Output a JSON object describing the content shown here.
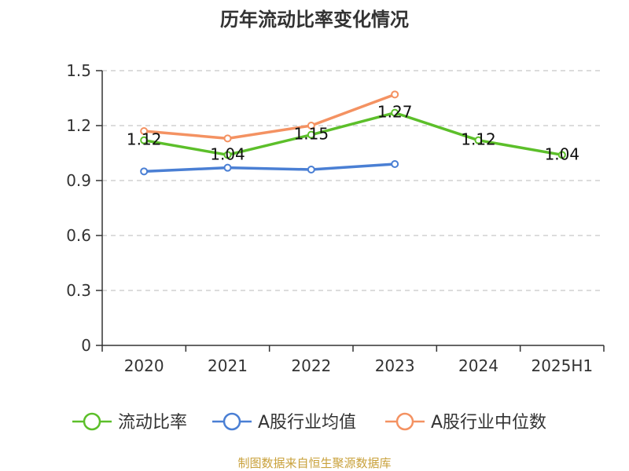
{
  "chart_data": {
    "type": "line",
    "title": "历年流动比率变化情况",
    "categories": [
      "2020",
      "2021",
      "2022",
      "2023",
      "2024",
      "2025H1"
    ],
    "yticks": [
      "0",
      "0.3",
      "0.6",
      "0.9",
      "1.2",
      "1.5"
    ],
    "ylim": [
      0,
      1.5
    ],
    "grid": true,
    "legend_position": "bottom",
    "series": [
      {
        "name": "流动比率",
        "color": "#5cbf2a",
        "values": [
          1.12,
          1.04,
          1.15,
          1.27,
          1.12,
          1.04
        ],
        "labels": [
          "1.12",
          "1.04",
          "1.15",
          "1.27",
          "1.12",
          "1.04"
        ]
      },
      {
        "name": "A股行业均值",
        "color": "#4a7fd4",
        "values": [
          0.95,
          0.97,
          0.96,
          0.99,
          null,
          null
        ]
      },
      {
        "name": "A股行业中位数",
        "color": "#f49262",
        "values": [
          1.17,
          1.13,
          1.2,
          1.37,
          null,
          null
        ]
      }
    ],
    "source": "制图数据来自恒生聚源数据库"
  }
}
